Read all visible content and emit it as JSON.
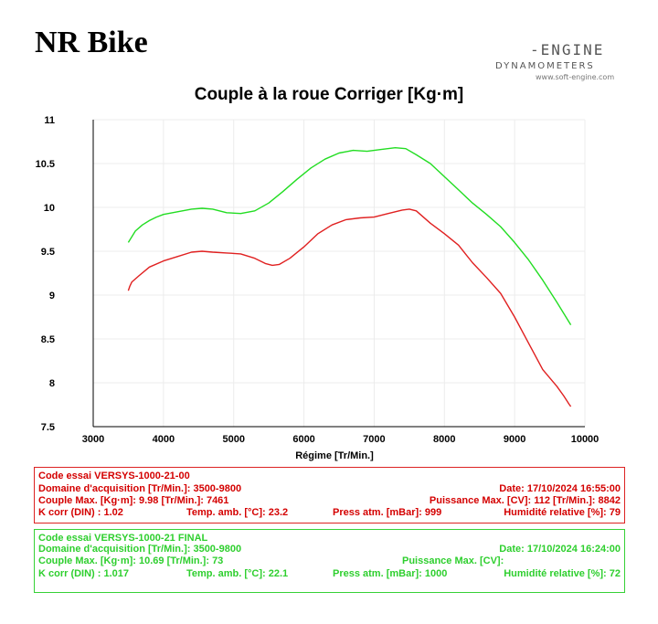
{
  "page_title": "NR Bike",
  "logo": {
    "line1": "-ENGINE",
    "line2": "DYNAMOMETERS",
    "line3": "www.soft-engine.com"
  },
  "chart_data": {
    "type": "line",
    "title": "Couple à la roue Corriger [Kg·m]",
    "xlabel": "Régime [Tr/Min.]",
    "ylabel": "",
    "xlim": [
      3000,
      10000
    ],
    "ylim": [
      7.5,
      11
    ],
    "xticks": [
      "3000",
      "4000",
      "5000",
      "6000",
      "7000",
      "8000",
      "9000",
      "10000"
    ],
    "yticks": [
      "7.5",
      "8",
      "8.5",
      "9",
      "9.5",
      "10",
      "10.5",
      "11"
    ],
    "grid": true,
    "colors": {
      "green": "#22dd22",
      "red": "#e02020"
    },
    "series": [
      {
        "color": "green",
        "x": [
          3500,
          3600,
          3700,
          3800,
          3900,
          4000,
          4200,
          4400,
          4550,
          4700,
          4900,
          5100,
          5300,
          5500,
          5700,
          5900,
          6100,
          6300,
          6500,
          6700,
          6900,
          7100,
          7300,
          7450,
          7600,
          7800,
          8000,
          8200,
          8400,
          8600,
          8800,
          9000,
          9200,
          9400,
          9600,
          9800
        ],
        "y": [
          9.6,
          9.73,
          9.8,
          9.85,
          9.89,
          9.92,
          9.95,
          9.98,
          9.99,
          9.98,
          9.94,
          9.93,
          9.96,
          10.05,
          10.18,
          10.32,
          10.45,
          10.55,
          10.62,
          10.65,
          10.64,
          10.66,
          10.68,
          10.67,
          10.6,
          10.5,
          10.35,
          10.2,
          10.05,
          9.92,
          9.78,
          9.6,
          9.4,
          9.17,
          8.92,
          8.66
        ]
      },
      {
        "color": "red",
        "x": [
          3500,
          3520,
          3550,
          3650,
          3800,
          4000,
          4200,
          4400,
          4550,
          4700,
          4900,
          5100,
          5300,
          5450,
          5550,
          5650,
          5800,
          6000,
          6200,
          6400,
          6600,
          6800,
          7000,
          7200,
          7400,
          7500,
          7600,
          7800,
          8000,
          8200,
          8400,
          8600,
          8800,
          9000,
          9200,
          9400,
          9600,
          9700,
          9780,
          9800
        ],
        "y": [
          9.05,
          9.1,
          9.15,
          9.22,
          9.32,
          9.39,
          9.44,
          9.49,
          9.5,
          9.49,
          9.48,
          9.47,
          9.42,
          9.36,
          9.34,
          9.35,
          9.42,
          9.55,
          9.7,
          9.8,
          9.86,
          9.88,
          9.89,
          9.93,
          9.97,
          9.98,
          9.96,
          9.82,
          9.7,
          9.57,
          9.37,
          9.2,
          9.02,
          8.75,
          8.45,
          8.15,
          7.96,
          7.85,
          7.75,
          7.73
        ]
      }
    ]
  },
  "red_panel": {
    "code": "Code essai  VERSYS-1000-21-00",
    "domain": "Domaine d'acquisition [Tr/Min.]: 3500-9800",
    "date": "Date: 17/10/2024   16:55:00",
    "couple": "Couple Max. [Kg·m]: 9.98   [Tr/Min.]: 7461",
    "puissance": "Puissance Max. [CV]: 112   [Tr/Min.]: 8842",
    "kcorr": "K corr  (DIN) : 1.02",
    "temp": "Temp. amb. [°C]: 23.2",
    "press": "Press atm. [mBar]: 999",
    "humid": "Humidité relative [%]: 79"
  },
  "green_panel": {
    "code": "Code essai  VERSYS-1000-21 FINAL",
    "domain": "Domaine d'acquisition [Tr/Min.]: 3500-9800",
    "date": "Date: 17/10/2024   16:24:00",
    "couple": "Couple Max. [Kg·m]: 10.69   [Tr/Min.]: 73",
    "puissance": "Puissance Max. [CV]:",
    "kcorr": "K corr  (DIN) : 1.017",
    "temp": "Temp. amb. [°C]: 22.1",
    "press": "Press atm. [mBar]: 1000",
    "humid": "Humidité relative [%]: 72"
  }
}
